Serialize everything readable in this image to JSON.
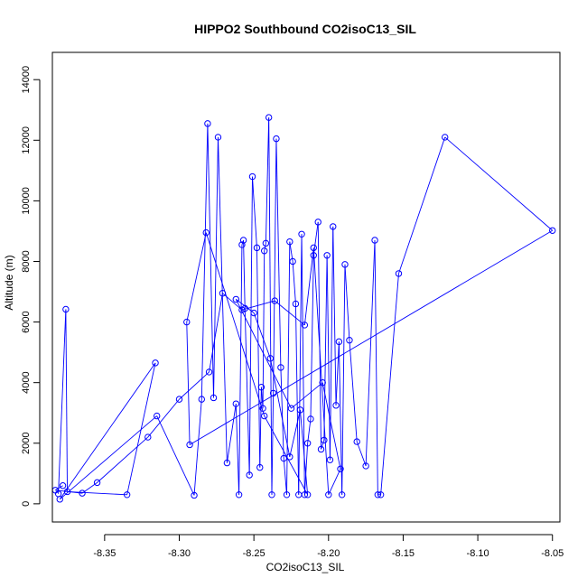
{
  "chart_data": {
    "type": "line",
    "title": "HIPPO2 Southbound CO2isoC13_SIL",
    "xlabel": "CO2isoC13_SIL",
    "ylabel": "Altitude (m)",
    "xlim": [
      -8.385,
      -8.045
    ],
    "ylim": [
      -600,
      14900
    ],
    "xticks": [
      -8.35,
      -8.3,
      -8.25,
      -8.2,
      -8.15,
      -8.1,
      -8.05
    ],
    "xtick_labels": [
      "-8.35",
      "-8.30",
      "-8.25",
      "-8.20",
      "-8.15",
      "-8.10",
      "-8.05"
    ],
    "yticks": [
      0,
      2000,
      4000,
      6000,
      8000,
      10000,
      12000,
      14000
    ],
    "ytick_labels": [
      "0",
      "2000",
      "4000",
      "6000",
      "8000",
      "10000",
      "12000",
      "14000"
    ],
    "grid": false,
    "series": [
      {
        "color": "#0000ff",
        "marker": "open-circle",
        "x": [
          -8.381,
          -8.376,
          -8.375,
          -8.335,
          -8.316,
          -8.38,
          -8.315,
          -8.29,
          -8.285,
          -8.281,
          -8.277,
          -8.274,
          -8.268,
          -8.262,
          -8.26,
          -8.258,
          -8.257,
          -8.256,
          -8.253,
          -8.251,
          -8.248,
          -8.246,
          -8.245,
          -8.244,
          -8.243,
          -8.242,
          -8.24,
          -8.238,
          -8.237,
          -8.235,
          -8.232,
          -8.23,
          -8.228,
          -8.226,
          -8.224,
          -8.222,
          -8.22,
          -8.218,
          -8.216,
          -8.214,
          -8.212,
          -8.21,
          -8.207,
          -8.205,
          -8.203,
          -8.201,
          -8.199,
          -8.197,
          -8.195,
          -8.193,
          -8.191,
          -8.189,
          -8.186,
          -8.181,
          -8.175,
          -8.169,
          -8.167,
          -8.165,
          -8.153,
          -8.122,
          -8.05,
          -8.293,
          -8.295,
          -8.282,
          -8.243,
          -8.214,
          -8.219,
          -8.226,
          -8.239,
          -8.25,
          -8.262,
          -8.225,
          -8.204,
          -8.192,
          -8.2,
          -8.21,
          -8.216,
          -8.236,
          -8.258,
          -8.271,
          -8.28,
          -8.3,
          -8.321,
          -8.355,
          -8.365,
          -8.383,
          -8.378
        ],
        "y": [
          330,
          6420,
          400,
          300,
          4650,
          150,
          2900,
          280,
          3450,
          12550,
          3500,
          12100,
          1350,
          3300,
          300,
          8550,
          8700,
          6450,
          950,
          10800,
          8450,
          1200,
          3850,
          3150,
          8350,
          8600,
          12750,
          300,
          3650,
          12050,
          4500,
          1500,
          300,
          8650,
          8000,
          6600,
          300,
          8900,
          300,
          2000,
          2800,
          8200,
          9300,
          1800,
          2100,
          8200,
          1450,
          9150,
          3250,
          5350,
          300,
          7900,
          5400,
          2050,
          1250,
          8700,
          300,
          300,
          7600,
          12100,
          9020,
          1950,
          6000,
          8950,
          2900,
          300,
          3100,
          1550,
          4800,
          6300,
          6750,
          3150,
          4000,
          1150,
          300,
          8450,
          5900,
          6700,
          6400,
          6950,
          4350,
          3450,
          2200,
          700,
          350,
          450,
          600
        ]
      }
    ]
  }
}
